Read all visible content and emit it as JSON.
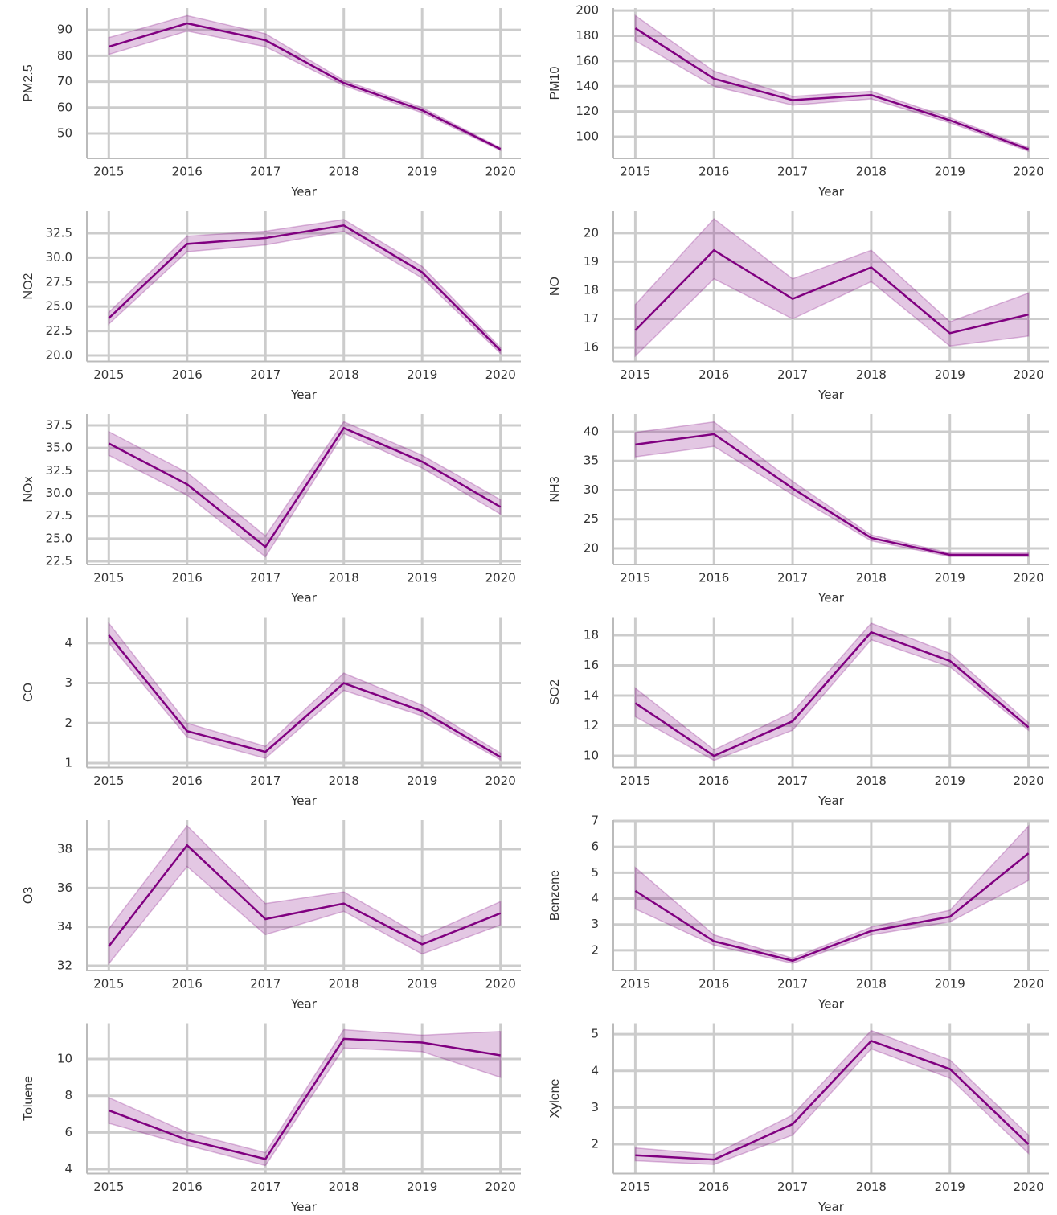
{
  "chart_data": [
    {
      "type": "line",
      "ylabel": "PM2.5",
      "xlabel": "Year",
      "x": [
        2015,
        2016,
        2017,
        2018,
        2019,
        2020
      ],
      "xticks": [
        2015,
        2016,
        2017,
        2018,
        2019,
        2020
      ],
      "xlim": [
        2014.72,
        2020.26
      ],
      "ylim": [
        40.4,
        98.4
      ],
      "yticks": [
        50,
        60,
        70,
        80,
        90
      ],
      "grid": true,
      "color": "#800080",
      "values": [
        83.5,
        92.5,
        86,
        69.5,
        59,
        44
      ],
      "lower": [
        80.5,
        89.5,
        83.5,
        68.5,
        58,
        43.5
      ],
      "upper": [
        87,
        95.5,
        88.5,
        70.5,
        60,
        44.5
      ]
    },
    {
      "type": "line",
      "ylabel": "PM10",
      "xlabel": "Year",
      "x": [
        2015,
        2016,
        2017,
        2018,
        2019,
        2020
      ],
      "xticks": [
        2015,
        2016,
        2017,
        2018,
        2019,
        2020
      ],
      "xlim": [
        2014.72,
        2020.26
      ],
      "ylim": [
        82.8,
        202
      ],
      "yticks": [
        100,
        120,
        140,
        160,
        180,
        200
      ],
      "grid": true,
      "color": "#800080",
      "values": [
        186,
        146,
        129,
        133,
        113,
        90
      ],
      "lower": [
        176,
        140,
        125,
        130,
        111,
        88.5
      ],
      "upper": [
        196,
        152,
        132,
        136,
        115,
        91.5
      ]
    },
    {
      "type": "line",
      "ylabel": "NO2",
      "xlabel": "Year",
      "x": [
        2015,
        2016,
        2017,
        2018,
        2019,
        2020
      ],
      "xticks": [
        2015,
        2016,
        2017,
        2018,
        2019,
        2020
      ],
      "xlim": [
        2014.72,
        2020.26
      ],
      "ylim": [
        19.38,
        34.76
      ],
      "yticks": [
        {
          "value": 20,
          "label": "20.0"
        },
        22.5,
        {
          "value": 25,
          "label": "25.0"
        },
        27.5,
        {
          "value": 30,
          "label": "30.0"
        },
        32.5
      ],
      "grid": true,
      "color": "#800080",
      "values": [
        23.8,
        31.4,
        32,
        33.3,
        28.5,
        20.5
      ],
      "lower": [
        23.2,
        30.6,
        31.3,
        32.7,
        27.9,
        20.2
      ],
      "upper": [
        24.4,
        32.2,
        32.7,
        33.9,
        29.1,
        20.8
      ]
    },
    {
      "type": "line",
      "ylabel": "NO",
      "xlabel": "Year",
      "x": [
        2015,
        2016,
        2017,
        2018,
        2019,
        2020
      ],
      "xticks": [
        2015,
        2016,
        2017,
        2018,
        2019,
        2020
      ],
      "xlim": [
        2014.72,
        2020.26
      ],
      "ylim": [
        15.51,
        20.77
      ],
      "yticks": [
        16,
        17,
        18,
        19,
        20
      ],
      "grid": true,
      "color": "#800080",
      "values": [
        16.6,
        19.4,
        17.7,
        18.8,
        16.5,
        17.15
      ],
      "lower": [
        15.7,
        18.4,
        17,
        18.3,
        16.05,
        16.4
      ],
      "upper": [
        17.5,
        20.5,
        18.4,
        19.4,
        16.9,
        17.9
      ]
    },
    {
      "type": "line",
      "ylabel": "NOx",
      "xlabel": "Year",
      "x": [
        2015,
        2016,
        2017,
        2018,
        2019,
        2020
      ],
      "xticks": [
        2015,
        2016,
        2017,
        2018,
        2019,
        2020
      ],
      "xlim": [
        2014.72,
        2020.26
      ],
      "ylim": [
        22.15,
        38.74
      ],
      "yticks": [
        22.5,
        {
          "value": 25,
          "label": "25.0"
        },
        27.5,
        {
          "value": 30,
          "label": "30.0"
        },
        32.5,
        {
          "value": 35,
          "label": "35.0"
        },
        37.5
      ],
      "grid": true,
      "color": "#800080",
      "values": [
        35.5,
        31,
        24.1,
        37.2,
        33.5,
        28.5
      ],
      "lower": [
        34.2,
        29.8,
        23,
        36.6,
        32.8,
        27.7
      ],
      "upper": [
        36.8,
        32.3,
        25.3,
        37.9,
        34.2,
        29.3
      ]
    },
    {
      "type": "line",
      "ylabel": "NH3",
      "xlabel": "Year",
      "x": [
        2015,
        2016,
        2017,
        2018,
        2019,
        2020
      ],
      "xticks": [
        2015,
        2016,
        2017,
        2018,
        2019,
        2020
      ],
      "xlim": [
        2014.72,
        2020.26
      ],
      "ylim": [
        17.24,
        43.03
      ],
      "yticks": [
        20,
        25,
        30,
        35,
        40
      ],
      "grid": true,
      "color": "#800080",
      "values": [
        37.8,
        39.6,
        30.3,
        21.8,
        18.9,
        18.9
      ],
      "lower": [
        35.7,
        37.5,
        29.2,
        21.3,
        18.6,
        18.6
      ],
      "upper": [
        39.9,
        41.7,
        31.5,
        22.3,
        19.2,
        19.2
      ]
    },
    {
      "type": "line",
      "ylabel": "CO",
      "xlabel": "Year",
      "x": [
        2015,
        2016,
        2017,
        2018,
        2019,
        2020
      ],
      "xticks": [
        2015,
        2016,
        2017,
        2018,
        2019,
        2020
      ],
      "xlim": [
        2014.72,
        2020.26
      ],
      "ylim": [
        0.89,
        4.65
      ],
      "yticks": [
        1,
        2,
        3,
        4
      ],
      "grid": true,
      "color": "#800080",
      "values": [
        4.2,
        1.8,
        1.28,
        3.0,
        2.3,
        1.15
      ],
      "lower": [
        4.0,
        1.65,
        1.12,
        2.82,
        2.18,
        1.08
      ],
      "upper": [
        4.5,
        2.0,
        1.42,
        3.25,
        2.45,
        1.25
      ]
    },
    {
      "type": "line",
      "ylabel": "SO2",
      "xlabel": "Year",
      "x": [
        2015,
        2016,
        2017,
        2018,
        2019,
        2020
      ],
      "xticks": [
        2015,
        2016,
        2017,
        2018,
        2019,
        2020
      ],
      "xlim": [
        2014.72,
        2020.26
      ],
      "ylim": [
        9.23,
        19.2
      ],
      "yticks": [
        10,
        12,
        14,
        16,
        18
      ],
      "grid": true,
      "color": "#800080",
      "values": [
        13.5,
        10,
        12.3,
        18.2,
        16.3,
        11.9
      ],
      "lower": [
        12.6,
        9.7,
        11.7,
        17.7,
        15.9,
        11.7
      ],
      "upper": [
        14.5,
        10.4,
        12.9,
        18.8,
        16.8,
        12.2
      ]
    },
    {
      "type": "line",
      "ylabel": "O3",
      "xlabel": "Year",
      "x": [
        2015,
        2016,
        2017,
        2018,
        2019,
        2020
      ],
      "xticks": [
        2015,
        2016,
        2017,
        2018,
        2019,
        2020
      ],
      "xlim": [
        2014.72,
        2020.26
      ],
      "ylim": [
        31.75,
        39.49
      ],
      "yticks": [
        32,
        34,
        36,
        38
      ],
      "grid": true,
      "color": "#800080",
      "values": [
        33,
        38.2,
        34.4,
        35.2,
        33.1,
        34.7
      ],
      "lower": [
        32.1,
        37.1,
        33.6,
        34.8,
        32.6,
        34.1
      ],
      "upper": [
        33.9,
        39.2,
        35.2,
        35.8,
        33.5,
        35.3
      ]
    },
    {
      "type": "line",
      "ylabel": "Benzene",
      "xlabel": "Year",
      "x": [
        2015,
        2016,
        2017,
        2018,
        2019,
        2020
      ],
      "xticks": [
        2015,
        2016,
        2017,
        2018,
        2019,
        2020
      ],
      "xlim": [
        2014.72,
        2020.26
      ],
      "ylim": [
        1.22,
        7.03
      ],
      "yticks": [
        2,
        3,
        4,
        5,
        6,
        7
      ],
      "grid": true,
      "color": "#800080",
      "values": [
        4.3,
        2.35,
        1.6,
        2.75,
        3.3,
        5.75
      ],
      "lower": [
        3.6,
        2.2,
        1.5,
        2.6,
        3.1,
        4.7
      ],
      "upper": [
        5.2,
        2.6,
        1.7,
        2.9,
        3.55,
        6.8
      ]
    },
    {
      "type": "line",
      "ylabel": "Toluene",
      "xlabel": "Year",
      "x": [
        2015,
        2016,
        2017,
        2018,
        2019,
        2020
      ],
      "xticks": [
        2015,
        2016,
        2017,
        2018,
        2019,
        2020
      ],
      "xlim": [
        2014.72,
        2020.26
      ],
      "ylim": [
        3.76,
        11.95
      ],
      "yticks": [
        4,
        6,
        8,
        10
      ],
      "grid": true,
      "color": "#800080",
      "values": [
        7.2,
        5.6,
        4.55,
        11.1,
        10.9,
        10.2
      ],
      "lower": [
        6.5,
        5.3,
        4.2,
        10.6,
        10.4,
        9.0
      ],
      "upper": [
        7.9,
        6.0,
        4.9,
        11.6,
        11.3,
        11.5
      ]
    },
    {
      "type": "line",
      "ylabel": "Xylene",
      "xlabel": "Year",
      "x": [
        2015,
        2016,
        2017,
        2018,
        2019,
        2020
      ],
      "xticks": [
        2015,
        2016,
        2017,
        2018,
        2019,
        2020
      ],
      "xlim": [
        2014.72,
        2020.26
      ],
      "ylim": [
        1.2,
        5.3
      ],
      "yticks": [
        2,
        3,
        4,
        5
      ],
      "grid": true,
      "color": "#800080",
      "values": [
        1.7,
        1.58,
        2.55,
        4.82,
        4.05,
        2.0
      ],
      "lower": [
        1.55,
        1.45,
        2.25,
        4.6,
        3.8,
        1.75
      ],
      "upper": [
        1.9,
        1.72,
        2.8,
        5.1,
        4.3,
        2.25
      ]
    }
  ]
}
